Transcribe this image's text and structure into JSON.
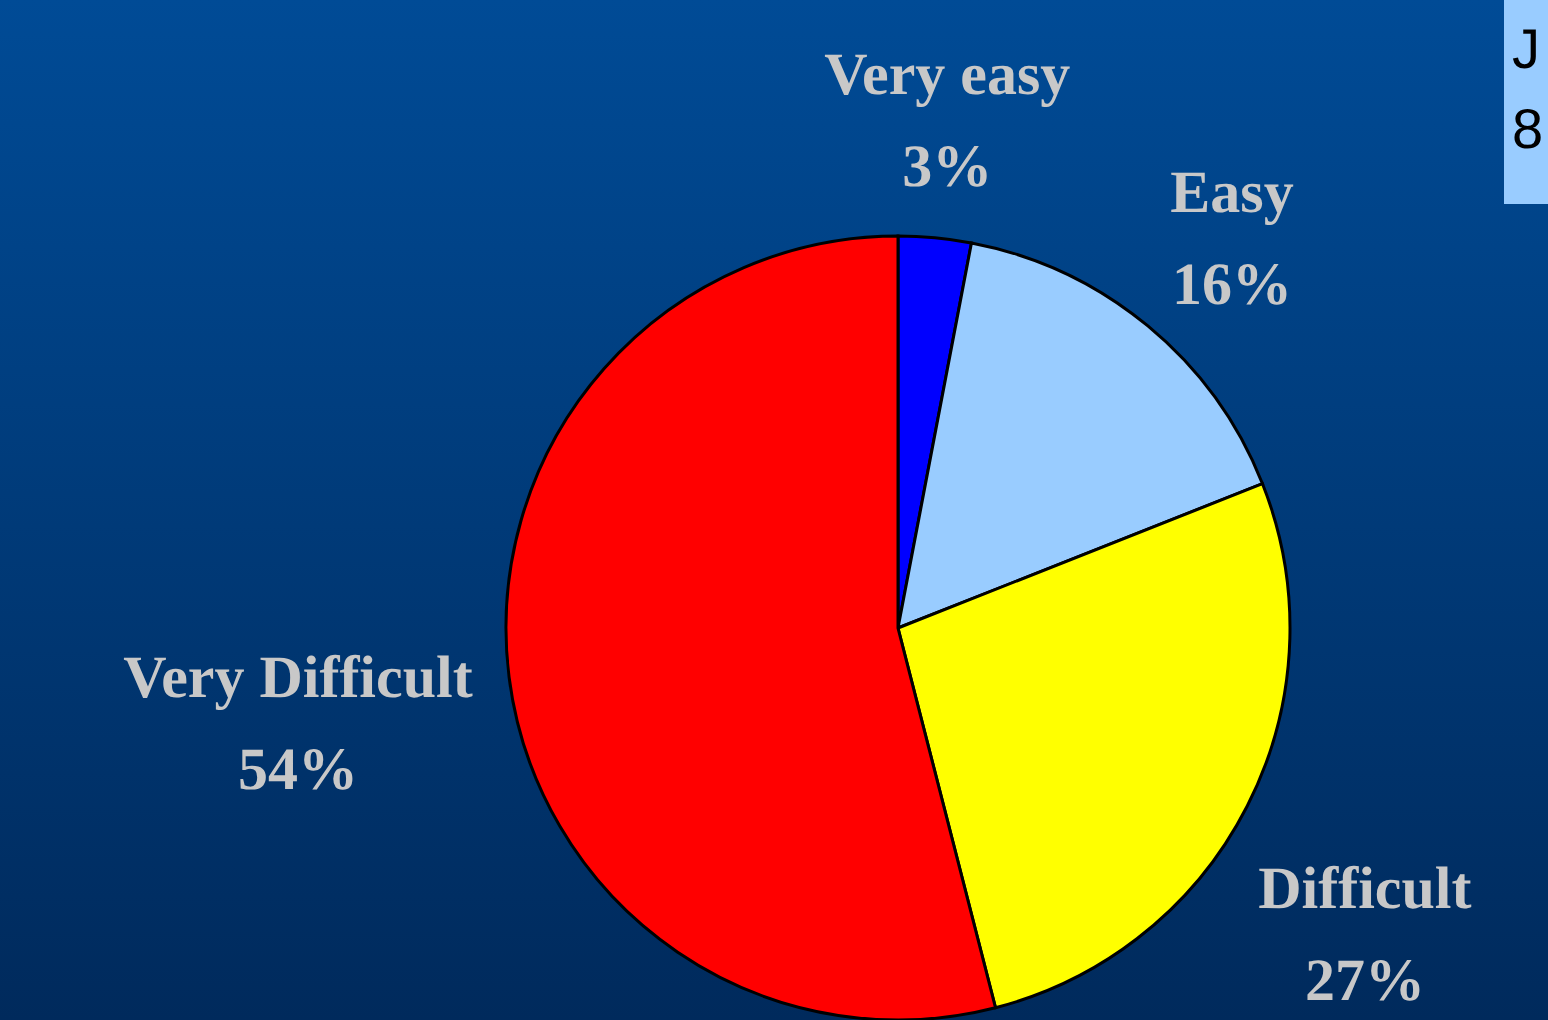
{
  "chart_data": {
    "type": "pie",
    "categories": [
      "Very easy",
      "Easy",
      "Difficult",
      "Very Difficult"
    ],
    "values": [
      3,
      16,
      27,
      54
    ],
    "colors": [
      "#0000ff",
      "#99ccff",
      "#ffff00",
      "#ff0000"
    ],
    "value_labels": [
      "3%",
      "16%",
      "27%",
      "54%"
    ],
    "annotations": [
      "J",
      "8"
    ]
  }
}
